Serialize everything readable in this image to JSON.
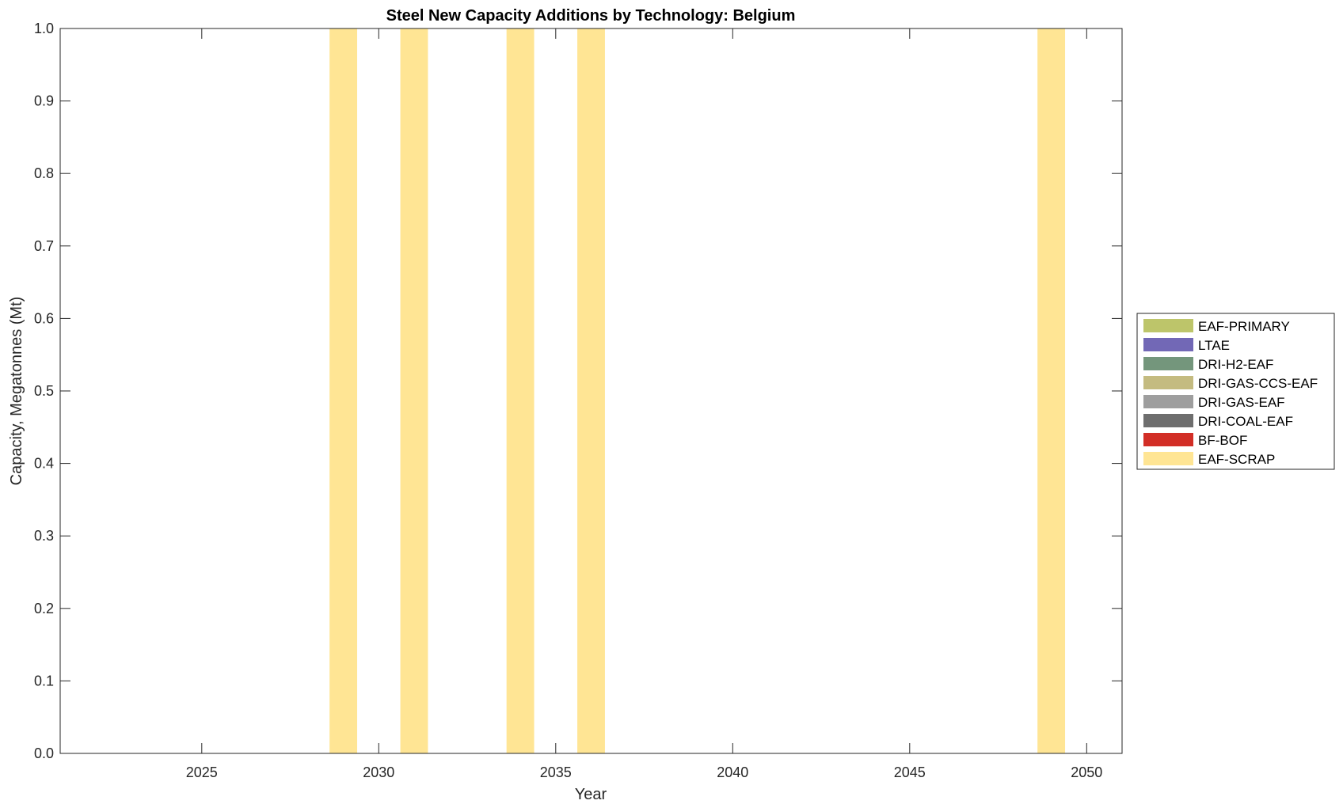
{
  "chart_data": {
    "type": "bar",
    "stacked": true,
    "title": "Steel New Capacity Additions by Technology: Belgium",
    "xlabel": "Year",
    "ylabel": "Capacity, Megatonnes (Mt)",
    "xlim": [
      2021,
      2051
    ],
    "ylim": [
      0,
      1
    ],
    "xticks": [
      2025,
      2030,
      2035,
      2040,
      2045,
      2050
    ],
    "yticks": [
      "0.0",
      "0.1",
      "0.2",
      "0.3",
      "0.4",
      "0.5",
      "0.6",
      "0.7",
      "0.8",
      "0.9",
      "1.0"
    ],
    "grid": false,
    "legend_placement": "outside-right",
    "series": [
      {
        "name": "EAF-PRIMARY",
        "color": "#bdc56a",
        "x": [],
        "values": []
      },
      {
        "name": "LTAE",
        "color": "#7268b6",
        "x": [],
        "values": []
      },
      {
        "name": "DRI-H2-EAF",
        "color": "#74967c",
        "x": [],
        "values": []
      },
      {
        "name": "DRI-GAS-CCS-EAF",
        "color": "#c4bb80",
        "x": [],
        "values": []
      },
      {
        "name": "DRI-GAS-EAF",
        "color": "#9e9e9e",
        "x": [],
        "values": []
      },
      {
        "name": "DRI-COAL-EAF",
        "color": "#6e6e6e",
        "x": [],
        "values": []
      },
      {
        "name": "BF-BOF",
        "color": "#d22e26",
        "x": [],
        "values": []
      },
      {
        "name": "EAF-SCRAP",
        "color": "#ffe594",
        "x": [
          2029,
          2031,
          2034,
          2036,
          2049
        ],
        "values": [
          1,
          1,
          1,
          1,
          1
        ]
      }
    ]
  }
}
